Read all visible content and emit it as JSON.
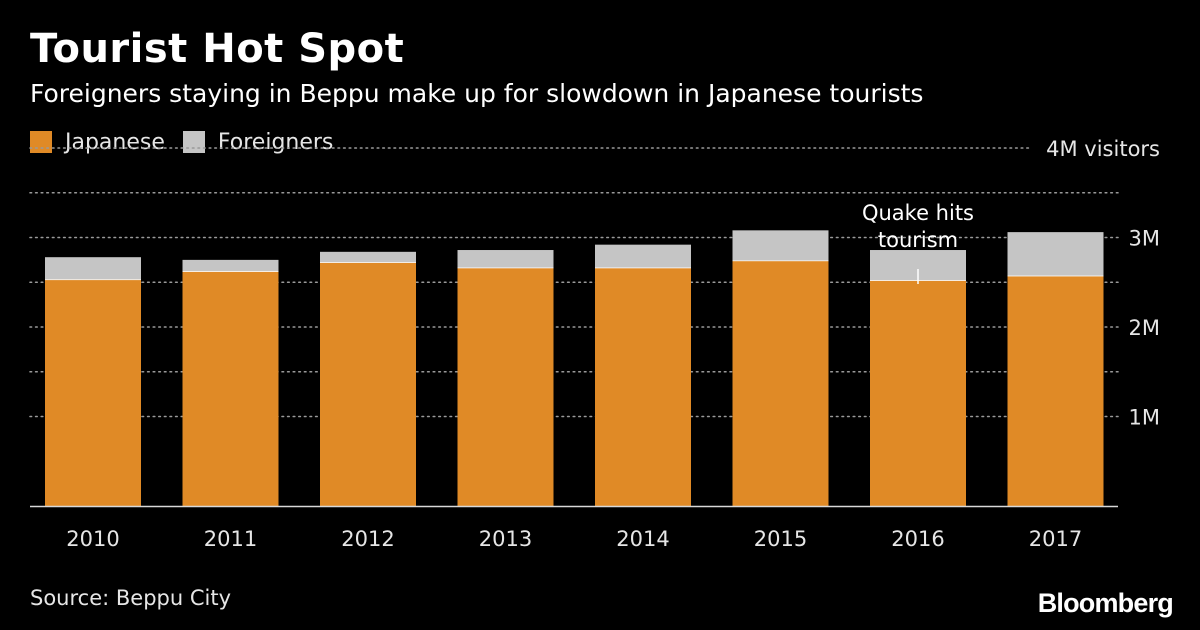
{
  "title": "Tourist Hot Spot",
  "subtitle": "Foreigners staying in Beppu make up for slowdown in Japanese tourists",
  "source": "Source: Beppu City",
  "logo": "Bloomberg",
  "colors": {
    "background": "#000000",
    "japanese": "#e08a26",
    "foreigners": "#c5c5c5",
    "grid": "#9a9a9a",
    "text": "#ffffff"
  },
  "chart_data": {
    "type": "bar",
    "stacked": true,
    "categories": [
      "2010",
      "2011",
      "2012",
      "2013",
      "2014",
      "2015",
      "2016",
      "2017"
    ],
    "series": [
      {
        "name": "Japanese",
        "color": "#e08a26",
        "values": [
          2.53,
          2.62,
          2.72,
          2.66,
          2.66,
          2.74,
          2.52,
          2.57
        ]
      },
      {
        "name": "Foreigners",
        "color": "#c5c5c5",
        "values": [
          0.25,
          0.13,
          0.12,
          0.2,
          0.26,
          0.34,
          0.34,
          0.49
        ]
      }
    ],
    "ylim": [
      0,
      4.5
    ],
    "yticks": [
      {
        "value": 1,
        "label": "1M"
      },
      {
        "value": 2,
        "label": "2M"
      },
      {
        "value": 3,
        "label": "3M"
      },
      {
        "value": 4,
        "label": "4M visitors"
      }
    ],
    "gridlines": [
      1,
      1.5,
      2,
      2.5,
      3,
      3.5,
      4
    ],
    "grid": true,
    "grid_style": "dotted",
    "legend_position": "top-left",
    "annotation": {
      "category": "2016",
      "lines": [
        "Quake hits",
        "tourism"
      ]
    },
    "xlabel": "",
    "ylabel": ""
  }
}
